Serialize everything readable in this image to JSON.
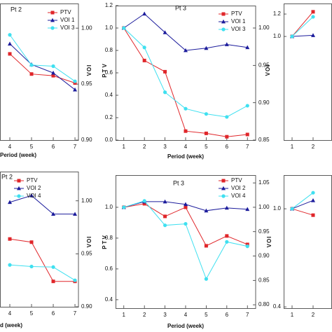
{
  "chart_data": [
    {
      "type": "line",
      "title": "Pt 2",
      "xlabel": "Period (week)",
      "y2label": "VOI",
      "legend": "upper right",
      "x": [
        4,
        5,
        6,
        7
      ],
      "xlim": [
        3.548,
        7.16
      ],
      "xticks": [
        4,
        5,
        6,
        7
      ],
      "y2lim": [
        0.9,
        1.022
      ],
      "y2ticks": [
        {
          "value": 0.9,
          "label": "0.90"
        },
        0.95,
        {
          "value": 1.0,
          "label": "1.00"
        }
      ],
      "series": [
        {
          "name": "PTV",
          "color": "#e0262a",
          "marker": "square",
          "axis": "y2",
          "values": [
            0.977,
            0.959,
            0.9575,
            0.951
          ]
        },
        {
          "name": "VOI 1",
          "color": "#1c1c9c",
          "marker": "triangle",
          "axis": "y2",
          "values": [
            0.986,
            0.9675,
            0.96,
            0.945
          ]
        },
        {
          "name": "VOI 3",
          "color": "#3fe0f0",
          "marker": "circle",
          "axis": "y2",
          "values": [
            0.994,
            0.967,
            0.966,
            0.9525
          ]
        }
      ]
    },
    {
      "type": "line",
      "title": "Pt 3",
      "xlabel": "Period (week)",
      "ylabel": "PTV",
      "y2label": "VOI",
      "legend": "upper right",
      "x": [
        1,
        2,
        3,
        4,
        5,
        6,
        7
      ],
      "xlim": [
        0.6,
        7.4
      ],
      "xticks": [
        1,
        2,
        3,
        4,
        5,
        6,
        7
      ],
      "ylim": [
        0,
        1.2
      ],
      "yticks": [
        {
          "value": 0,
          "label": "0.0"
        },
        0.2,
        0.4,
        0.6,
        0.8,
        {
          "value": 1.0,
          "label": "1.0"
        },
        1.2
      ],
      "y2lim": [
        0.85,
        1.03
      ],
      "y2ticks": [
        0.85,
        {
          "value": 0.9,
          "label": "0.90"
        },
        0.95,
        {
          "value": 1.0,
          "label": "1.00"
        }
      ],
      "series": [
        {
          "name": "PTV",
          "color": "#e0262a",
          "marker": "square",
          "values": [
            1.0,
            0.71,
            0.61,
            0.08,
            0.06,
            0.03,
            0.05
          ]
        },
        {
          "name": "VOI 1",
          "color": "#1c1c9c",
          "marker": "triangle",
          "axis": "y2",
          "values": [
            1.0,
            1.019,
            0.994,
            0.97,
            0.973,
            0.978,
            0.974
          ]
        },
        {
          "name": "VOI 3",
          "color": "#3fe0f0",
          "marker": "circle",
          "axis": "y2",
          "values": [
            1.0,
            0.974,
            0.914,
            0.892,
            0.885,
            0.881,
            0.896
          ]
        }
      ]
    },
    {
      "type": "line",
      "x": [
        1,
        2
      ],
      "xlim": [
        0.6,
        2.9
      ],
      "xticks": [
        1,
        2
      ],
      "ylim": [
        0.075,
        1.294
      ],
      "yticks": [
        {
          "value": 1.0,
          "label": "1.0"
        },
        1.2
      ],
      "series": [
        {
          "color": "#e0262a",
          "marker": "square",
          "values": [
            1.0,
            1.22
          ]
        },
        {
          "color": "#1c1c9c",
          "marker": "triangle",
          "values": [
            1.0,
            1.01
          ]
        },
        {
          "color": "#3fe0f0",
          "marker": "circle",
          "values": [
            1.0,
            1.175
          ]
        }
      ]
    },
    {
      "type": "line",
      "title": "Pt 2",
      "xlabel": "d (week)",
      "y2label": "VOI",
      "legend": "upper left",
      "x": [
        4,
        5,
        6,
        7
      ],
      "xlim": [
        3.548,
        7.16
      ],
      "xticks": [
        4,
        5,
        6,
        7
      ],
      "y2lim": [
        0.9,
        1.0276
      ],
      "y2ticks": [
        {
          "value": 0.9,
          "label": "0.90"
        },
        0.95,
        {
          "value": 1.0,
          "label": "1.00"
        }
      ],
      "series": [
        {
          "name": "PTV",
          "color": "#e0262a",
          "marker": "square",
          "axis": "y2",
          "values": [
            0.964,
            0.961,
            0.924,
            0.924
          ]
        },
        {
          "name": "VOI 2",
          "color": "#1c1c9c",
          "marker": "triangle",
          "axis": "y2",
          "values": [
            0.9987,
            1.005,
            0.9875,
            0.9875
          ]
        },
        {
          "name": "VOI 4",
          "color": "#3fe0f0",
          "marker": "circle",
          "axis": "y2",
          "values": [
            0.9395,
            0.938,
            0.9375,
            0.925
          ]
        }
      ]
    },
    {
      "type": "line",
      "title": "Pt 3",
      "xlabel": "Period (week)",
      "ylabel": "PTV",
      "y2label": "VOI",
      "legend": "upper right",
      "x": [
        1,
        2,
        3,
        4,
        5,
        6,
        7
      ],
      "xlim": [
        0.6,
        7.4
      ],
      "xticks": [
        1,
        2,
        3,
        4,
        5,
        6,
        7
      ],
      "ylim": [
        0.345,
        1.209
      ],
      "yticks": [
        0.4,
        0.6,
        0.8,
        {
          "value": 1.0,
          "label": "1.0"
        }
      ],
      "y2lim": [
        0.793,
        1.066
      ],
      "y2ticks": [
        {
          "value": 0.8,
          "label": "0.80"
        },
        0.85,
        {
          "value": 0.9,
          "label": "0.90"
        },
        0.95,
        {
          "value": 1.0,
          "label": "1.00"
        },
        1.05
      ],
      "series": [
        {
          "name": "PTV",
          "color": "#e0262a",
          "marker": "square",
          "values": [
            1.0,
            1.023,
            0.941,
            1.0,
            0.75,
            0.814,
            0.759
          ]
        },
        {
          "name": "VOI 2",
          "color": "#1c1c9c",
          "marker": "triangle",
          "axis": "y2",
          "values": [
            1.0,
            1.0115,
            1.0115,
            1.006,
            0.993,
            0.9986,
            0.996
          ]
        },
        {
          "name": "VOI 4",
          "color": "#3fe0f0",
          "marker": "circle",
          "axis": "y2",
          "values": [
            1.0,
            1.013,
            0.963,
            0.966,
            0.853,
            0.929,
            0.92
          ]
        }
      ]
    },
    {
      "type": "line",
      "x": [
        1,
        2
      ],
      "xlim": [
        0.6,
        2.9
      ],
      "xticks": [
        1,
        2
      ],
      "ylim": [
        0.392,
        1.206
      ],
      "yticks": [
        0.4,
        {
          "value": 1.0,
          "label": "1.0"
        }
      ],
      "series": [
        {
          "color": "#e0262a",
          "marker": "square",
          "values": [
            1.0,
            0.961
          ]
        },
        {
          "color": "#1c1c9c",
          "marker": "triangle",
          "values": [
            1.0,
            1.051
          ]
        },
        {
          "color": "#3fe0f0",
          "marker": "circle",
          "values": [
            1.0,
            1.098
          ]
        }
      ]
    }
  ]
}
